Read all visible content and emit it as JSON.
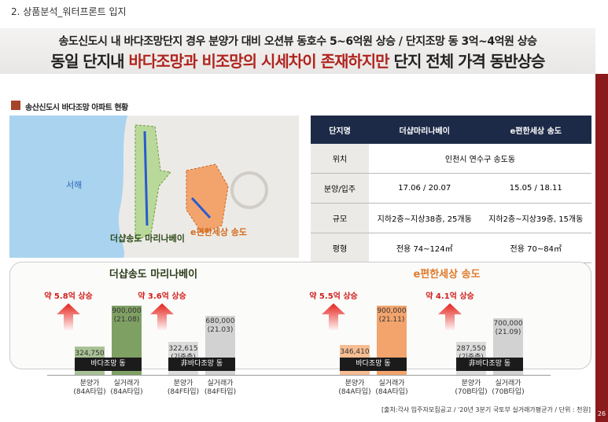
{
  "header": {
    "section": "2. 상품분석_워터프론트 입지"
  },
  "headline": {
    "line1": "송도신도시 내 바다조망단지 경우 분양가 대비 오션뷰 동호수 5~6억원 상승 / 단지조망 동 3억~4억원 상승",
    "line2_prefix": "동일 단지내 ",
    "line2_highlight": "바다조망과 비조망의 시세차이 존재하지만",
    "line2_suffix": " 단지 전체 가격 동반상승"
  },
  "map": {
    "title": "송산신도시 바다조망 아파트 현황",
    "sea": "서해",
    "complex1": "더샵송도 마리나베이",
    "complex2": "e편한세상 송도"
  },
  "table": {
    "header": [
      "단지명",
      "더샵마리나베이",
      "e편한세상 송도"
    ],
    "rows": [
      [
        "위치",
        "인천시 연수구 송도동"
      ],
      [
        "분양/입주",
        "17.06 / 20.07",
        "15.05 / 18.11"
      ],
      [
        "규모",
        "지하2층~지상38층, 25개동",
        "지하2층~지상39층, 15개동"
      ],
      [
        "평형",
        "전용 74~124㎡",
        "전용 70~84㎡"
      ]
    ]
  },
  "comparison": {
    "groups": [
      {
        "title": "더샵송도 마리나베이",
        "pairs": [
          {
            "increase": "약 5.8억 상승",
            "tag": "바다조망 동",
            "left": {
              "value": "324,750",
              "label": "분양가",
              "type": "(84A타입)"
            },
            "right": {
              "value": "900,000",
              "note": "(21.08)",
              "label": "실거래가",
              "type": "(84A타입)"
            }
          },
          {
            "increase": "약 3.6억 상승",
            "tag": "非바다조망 동",
            "left": {
              "value": "322,615",
              "note": "(기준층)",
              "label": "분양가",
              "type": "(84F타입)"
            },
            "right": {
              "value": "680,000",
              "note": "(21.03)",
              "label": "실거래가",
              "type": "(84F타입)"
            }
          }
        ]
      },
      {
        "title": "e편한세상 송도",
        "pairs": [
          {
            "increase": "약 5.5억 상승",
            "tag": "바다조망 동",
            "left": {
              "value": "346,410",
              "label": "분양가",
              "type": "(84A타입)"
            },
            "right": {
              "value": "900,000",
              "note": "(21.11)",
              "label": "실거래가",
              "type": "(84A타입)"
            }
          },
          {
            "increase": "약 4.1억 상승",
            "tag": "非바다조망 동",
            "left": {
              "value": "287,550",
              "note": "(기준층)",
              "label": "분양가",
              "type": "(70B타입)"
            },
            "right": {
              "value": "700,000",
              "note": "(21.09)",
              "label": "실거래가",
              "type": "(70B타입)"
            }
          }
        ]
      }
    ]
  },
  "footer": {
    "source": "[출처:각사 입주자모집공고 / '20년 3분기 국토부 실거래가평균가 / 단위 : 천원]",
    "page": "26"
  }
}
